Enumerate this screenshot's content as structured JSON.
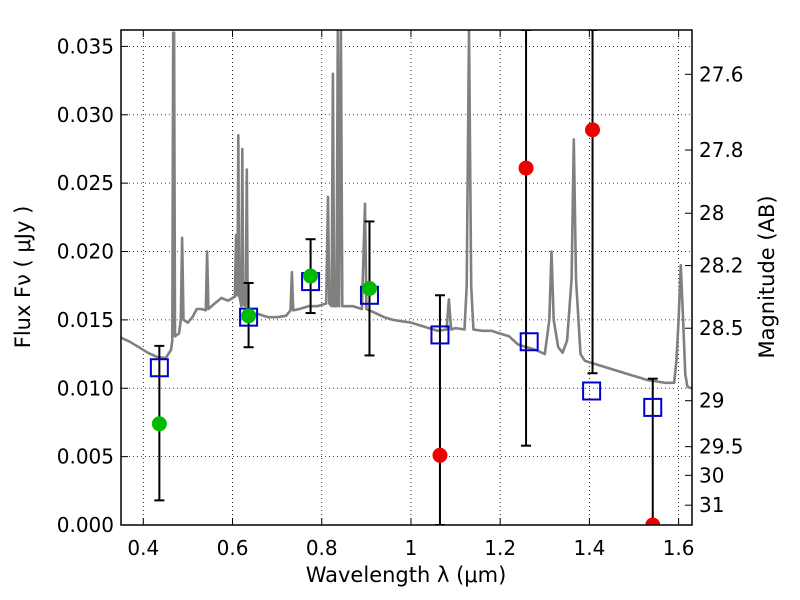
{
  "chart_data": {
    "type": "scatter",
    "xlabel": "Wavelength  λ (μm)",
    "ylabel": "Flux  Fν  ( μJy )",
    "ylabel_right": "Magnitude (AB)",
    "xlim": [
      0.35,
      1.63
    ],
    "ylim": [
      0.0,
      0.0362
    ],
    "grid": true,
    "x_ticks": [
      0.4,
      0.6,
      0.8,
      1.0,
      1.2,
      1.4,
      1.6
    ],
    "x_tick_labels": [
      "0.4",
      "0.6",
      "0.8",
      "1",
      "1.2",
      "1.4",
      "1.6"
    ],
    "y_ticks": [
      0.0,
      0.005,
      0.01,
      0.015,
      0.02,
      0.025,
      0.03,
      0.035
    ],
    "y_tick_labels": [
      "0.000",
      "0.005",
      "0.010",
      "0.015",
      "0.020",
      "0.025",
      "0.030",
      "0.035"
    ],
    "right_ticks": [
      {
        "label": "27.6",
        "flux": 0.03296
      },
      {
        "label": "27.8",
        "flux": 0.02742
      },
      {
        "label": "28",
        "flux": 0.0228
      },
      {
        "label": "28.2",
        "flux": 0.01897
      },
      {
        "label": "28.5",
        "flux": 0.01439
      },
      {
        "label": "29",
        "flux": 0.00909
      },
      {
        "label": "29.5",
        "flux": 0.00573
      },
      {
        "label": "30",
        "flux": 0.00363
      },
      {
        "label": "31",
        "flux": 0.00145
      }
    ],
    "series": [
      {
        "kind": "line",
        "color": "#808080",
        "points": [
          [
            0.35,
            0.0137
          ],
          [
            0.37,
            0.0134
          ],
          [
            0.39,
            0.013
          ],
          [
            0.41,
            0.0126
          ],
          [
            0.43,
            0.0123
          ],
          [
            0.45,
            0.0122
          ],
          [
            0.462,
            0.0128
          ],
          [
            0.465,
            0.0135
          ],
          [
            0.467,
            0.036
          ],
          [
            0.469,
            0.036
          ],
          [
            0.471,
            0.0138
          ],
          [
            0.48,
            0.014
          ],
          [
            0.484,
            0.015
          ],
          [
            0.487,
            0.021
          ],
          [
            0.49,
            0.015
          ],
          [
            0.5,
            0.0148
          ],
          [
            0.51,
            0.0152
          ],
          [
            0.52,
            0.0158
          ],
          [
            0.53,
            0.0158
          ],
          [
            0.54,
            0.0157
          ],
          [
            0.543,
            0.02
          ],
          [
            0.546,
            0.0158
          ],
          [
            0.56,
            0.0162
          ],
          [
            0.575,
            0.0166
          ],
          [
            0.59,
            0.0164
          ],
          [
            0.605,
            0.0167
          ],
          [
            0.608,
            0.0212
          ],
          [
            0.611,
            0.0168
          ],
          [
            0.613,
            0.0285
          ],
          [
            0.615,
            0.0168
          ],
          [
            0.62,
            0.016
          ],
          [
            0.622,
            0.0275
          ],
          [
            0.624,
            0.0162
          ],
          [
            0.628,
            0.016
          ],
          [
            0.63,
            0.0178
          ],
          [
            0.632,
            0.026
          ],
          [
            0.634,
            0.016
          ],
          [
            0.64,
            0.0155
          ],
          [
            0.66,
            0.0154
          ],
          [
            0.68,
            0.0152
          ],
          [
            0.7,
            0.0152
          ],
          [
            0.72,
            0.0153
          ],
          [
            0.73,
            0.0157
          ],
          [
            0.733,
            0.0185
          ],
          [
            0.736,
            0.0157
          ],
          [
            0.75,
            0.0158
          ],
          [
            0.77,
            0.016
          ],
          [
            0.79,
            0.016
          ],
          [
            0.81,
            0.0162
          ],
          [
            0.814,
            0.024
          ],
          [
            0.817,
            0.0162
          ],
          [
            0.822,
            0.016
          ],
          [
            0.825,
            0.033
          ],
          [
            0.828,
            0.016
          ],
          [
            0.833,
            0.016
          ],
          [
            0.836,
            0.0362
          ],
          [
            0.839,
            0.016
          ],
          [
            0.843,
            0.0362
          ],
          [
            0.846,
            0.016
          ],
          [
            0.87,
            0.016
          ],
          [
            0.89,
            0.0158
          ],
          [
            0.897,
            0.0235
          ],
          [
            0.9,
            0.0158
          ],
          [
            0.92,
            0.0155
          ],
          [
            0.94,
            0.0152
          ],
          [
            0.96,
            0.015
          ],
          [
            0.98,
            0.0149
          ],
          [
            1.0,
            0.0148
          ],
          [
            1.02,
            0.0146
          ],
          [
            1.04,
            0.0144
          ],
          [
            1.06,
            0.0142
          ],
          [
            1.08,
            0.0143
          ],
          [
            1.085,
            0.0165
          ],
          [
            1.09,
            0.0143
          ],
          [
            1.1,
            0.0144
          ],
          [
            1.12,
            0.0143
          ],
          [
            1.125,
            0.0175
          ],
          [
            1.13,
            0.0362
          ],
          [
            1.135,
            0.0175
          ],
          [
            1.14,
            0.0143
          ],
          [
            1.16,
            0.0142
          ],
          [
            1.18,
            0.0142
          ],
          [
            1.2,
            0.014
          ],
          [
            1.22,
            0.0138
          ],
          [
            1.24,
            0.0132
          ],
          [
            1.26,
            0.013
          ],
          [
            1.28,
            0.0128
          ],
          [
            1.3,
            0.0125
          ],
          [
            1.31,
            0.015
          ],
          [
            1.315,
            0.02
          ],
          [
            1.32,
            0.015
          ],
          [
            1.33,
            0.013
          ],
          [
            1.34,
            0.0126
          ],
          [
            1.35,
            0.0135
          ],
          [
            1.36,
            0.018
          ],
          [
            1.365,
            0.0282
          ],
          [
            1.37,
            0.018
          ],
          [
            1.38,
            0.0125
          ],
          [
            1.39,
            0.012
          ],
          [
            1.41,
            0.0118
          ],
          [
            1.43,
            0.0116
          ],
          [
            1.45,
            0.0114
          ],
          [
            1.47,
            0.0112
          ],
          [
            1.49,
            0.011
          ],
          [
            1.51,
            0.0108
          ],
          [
            1.53,
            0.0106
          ],
          [
            1.55,
            0.0105
          ],
          [
            1.57,
            0.0104
          ],
          [
            1.59,
            0.0104
          ],
          [
            1.595,
            0.012
          ],
          [
            1.6,
            0.015
          ],
          [
            1.605,
            0.019
          ],
          [
            1.61,
            0.015
          ],
          [
            1.615,
            0.011
          ],
          [
            1.62,
            0.0101
          ],
          [
            1.63,
            0.01
          ]
        ]
      },
      {
        "kind": "markers",
        "marker": "square",
        "color": "#0000cc",
        "points": [
          [
            0.436,
            0.0115
          ],
          [
            0.636,
            0.0152
          ],
          [
            0.775,
            0.0178
          ],
          [
            0.907,
            0.0168
          ],
          [
            1.065,
            0.0139
          ],
          [
            1.265,
            0.0134
          ],
          [
            1.405,
            0.0098
          ],
          [
            1.542,
            0.0086
          ]
        ]
      },
      {
        "kind": "markers",
        "marker": "circle",
        "color": "#00bb00",
        "points": [
          [
            0.436,
            0.0074
          ],
          [
            0.636,
            0.0153
          ],
          [
            0.775,
            0.0182
          ],
          [
            0.907,
            0.0173
          ]
        ]
      },
      {
        "kind": "markers",
        "marker": "circle",
        "color": "#ee0000",
        "points": [
          [
            1.065,
            0.0051
          ],
          [
            1.258,
            0.0261
          ],
          [
            1.407,
            0.0289
          ],
          [
            1.542,
            0.0
          ]
        ]
      }
    ],
    "error_bars": [
      {
        "x": 0.436,
        "low": 0.0018,
        "high": 0.0131
      },
      {
        "x": 0.636,
        "low": 0.013,
        "high": 0.0177
      },
      {
        "x": 0.775,
        "low": 0.0155,
        "high": 0.0209
      },
      {
        "x": 0.907,
        "low": 0.0124,
        "high": 0.0222
      },
      {
        "x": 1.065,
        "low": 0.0,
        "high": 0.0168
      },
      {
        "x": 1.258,
        "low": 0.0058,
        "high": 0.0362
      },
      {
        "x": 1.407,
        "low": 0.0111,
        "high": 0.0362
      },
      {
        "x": 1.542,
        "low": 0.0,
        "high": 0.0107
      }
    ]
  }
}
